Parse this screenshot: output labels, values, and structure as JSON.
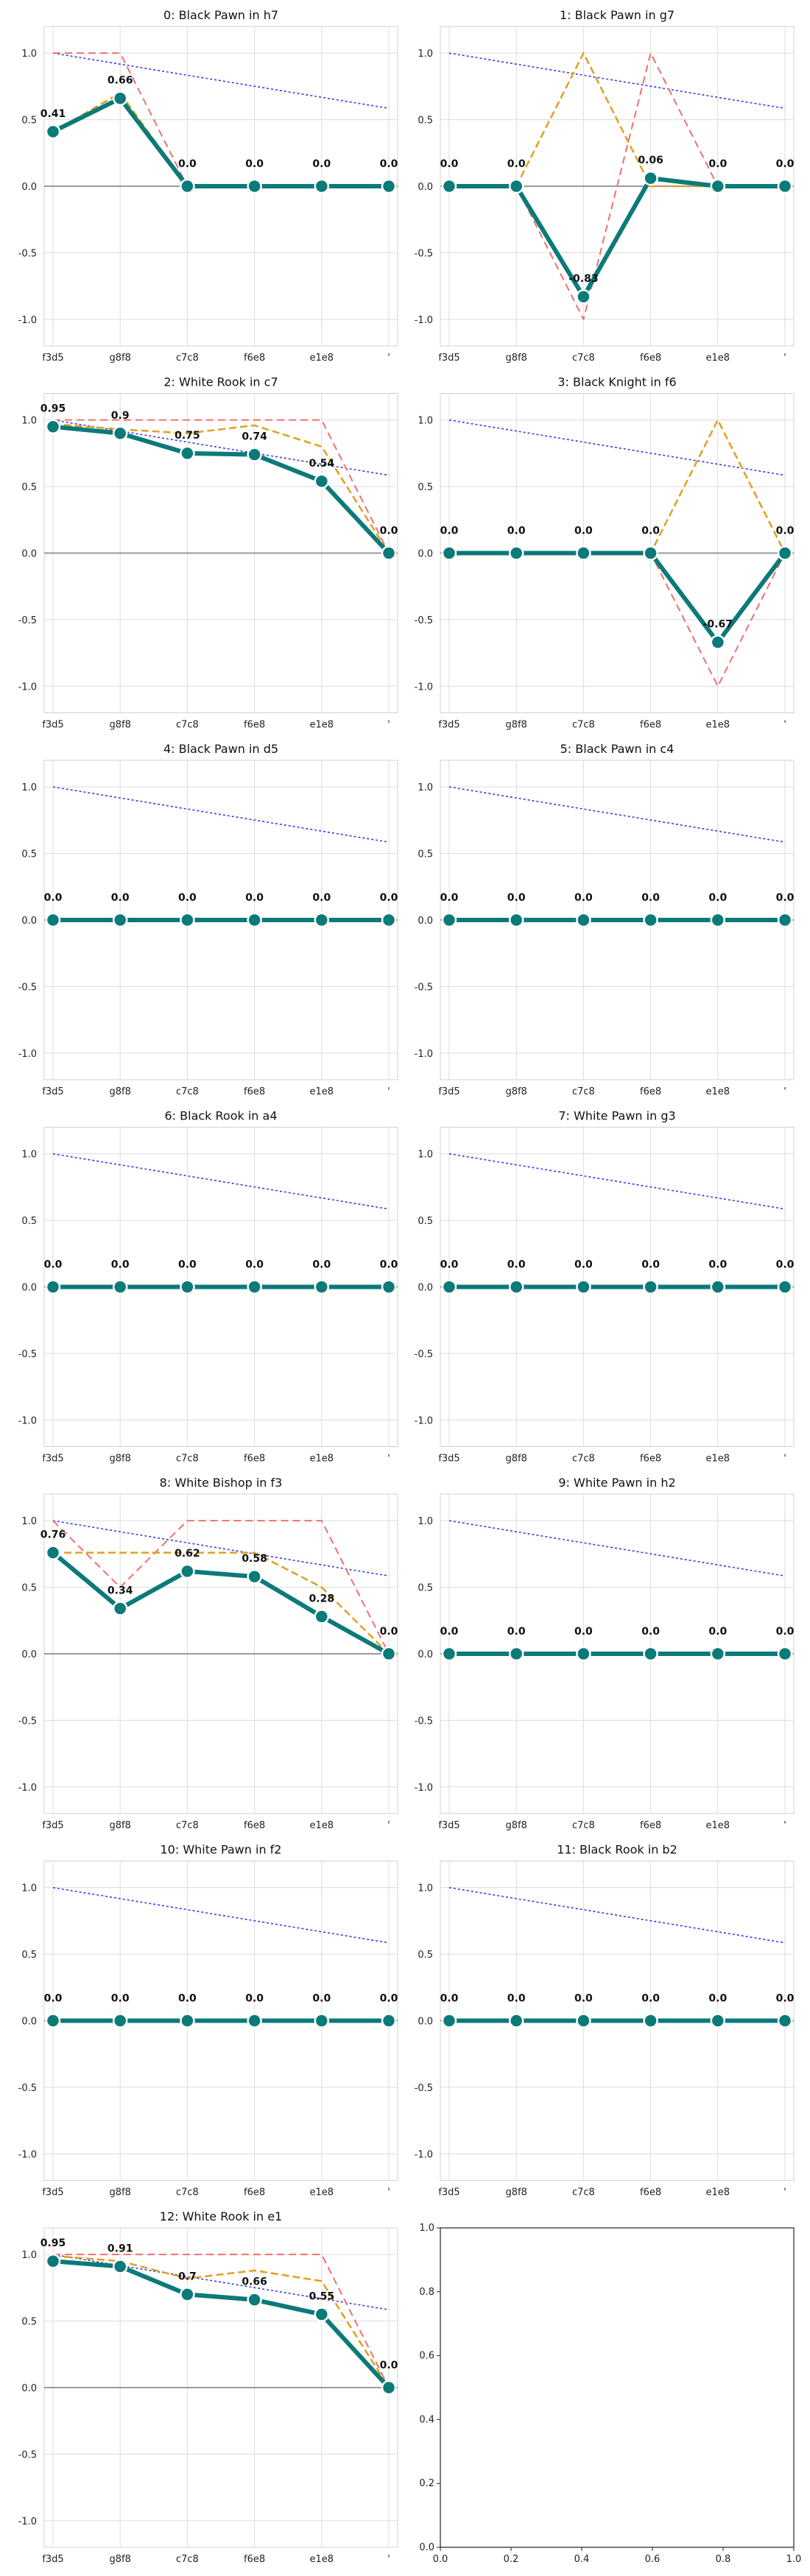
{
  "x_ticks": [
    "f3d5",
    "g8f8",
    "c7c8",
    "f6e8",
    "e1e8",
    "'"
  ],
  "y_ticks": [
    "1.0",
    "0.5",
    "0.0",
    "-0.5",
    "-1.0"
  ],
  "empty_panel_ticks": [
    "0.0",
    "0.2",
    "0.4",
    "0.6",
    "0.8",
    "1.0"
  ],
  "colors": {
    "main": "#0b7a78",
    "orange": "#e0a020",
    "red": "#f07070",
    "blue": "#3a3ae8",
    "zero": "#9a9a9a"
  },
  "chart_data": [
    {
      "type": "line",
      "title": "0: Black Pawn in h7",
      "ylim": [
        -1.2,
        1.2
      ],
      "grid": true,
      "series": [
        {
          "role": "main",
          "values": [
            0.41,
            0.66,
            0.0,
            0.0,
            0.0,
            0.0
          ]
        },
        {
          "role": "orange",
          "values": [
            0.41,
            0.7,
            0.0,
            0.0,
            0.0,
            0.0
          ]
        },
        {
          "role": "red",
          "values": [
            1.0,
            1.0,
            0.0,
            0.0,
            0.0,
            0.0
          ]
        },
        {
          "role": "blue",
          "values": [
            1.0,
            0.917,
            0.834,
            0.751,
            0.668,
            0.585
          ]
        }
      ],
      "labels": [
        "0.41",
        "0.66",
        "0.0",
        "0.0",
        "0.0",
        "0.0"
      ]
    },
    {
      "type": "line",
      "title": "1: Black Pawn in g7",
      "ylim": [
        -1.2,
        1.2
      ],
      "grid": true,
      "series": [
        {
          "role": "main",
          "values": [
            0.0,
            0.0,
            -0.83,
            0.06,
            0.0,
            0.0
          ]
        },
        {
          "role": "orange",
          "values": [
            0.0,
            0.0,
            1.0,
            0.0,
            0.0,
            0.0
          ]
        },
        {
          "role": "red",
          "values": [
            0.0,
            0.0,
            -1.0,
            1.0,
            0.0,
            0.0
          ]
        },
        {
          "role": "blue",
          "values": [
            1.0,
            0.917,
            0.834,
            0.751,
            0.668,
            0.585
          ]
        }
      ],
      "labels": [
        "0.0",
        "0.0",
        "-0.83",
        "0.06",
        "0.0",
        "0.0"
      ]
    },
    {
      "type": "line",
      "title": "2: White Rook in c7",
      "ylim": [
        -1.2,
        1.2
      ],
      "grid": true,
      "series": [
        {
          "role": "main",
          "values": [
            0.95,
            0.9,
            0.75,
            0.74,
            0.54,
            0.0
          ]
        },
        {
          "role": "orange",
          "values": [
            0.97,
            0.93,
            0.9,
            0.96,
            0.8,
            0.0
          ]
        },
        {
          "role": "red",
          "values": [
            1.0,
            1.0,
            1.0,
            1.0,
            1.0,
            0.0
          ]
        },
        {
          "role": "blue",
          "values": [
            1.0,
            0.917,
            0.834,
            0.751,
            0.668,
            0.585
          ]
        }
      ],
      "labels": [
        "0.95",
        "0.9",
        "0.75",
        "0.74",
        "0.54",
        "0.0"
      ]
    },
    {
      "type": "line",
      "title": "3: Black Knight in f6",
      "ylim": [
        -1.2,
        1.2
      ],
      "grid": true,
      "series": [
        {
          "role": "main",
          "values": [
            0.0,
            0.0,
            0.0,
            0.0,
            -0.67,
            0.0
          ]
        },
        {
          "role": "orange",
          "values": [
            0.0,
            0.0,
            0.0,
            0.0,
            1.0,
            0.0
          ]
        },
        {
          "role": "red",
          "values": [
            0.0,
            0.0,
            0.0,
            0.0,
            -1.0,
            0.0
          ]
        },
        {
          "role": "blue",
          "values": [
            1.0,
            0.917,
            0.834,
            0.751,
            0.668,
            0.585
          ]
        }
      ],
      "labels": [
        "0.0",
        "0.0",
        "0.0",
        "0.0",
        "-0.67",
        "0.0"
      ]
    },
    {
      "type": "line",
      "title": "4: Black Pawn in d5",
      "ylim": [
        -1.2,
        1.2
      ],
      "grid": true,
      "series": [
        {
          "role": "main",
          "values": [
            0.0,
            0.0,
            0.0,
            0.0,
            0.0,
            0.0
          ]
        },
        {
          "role": "orange",
          "values": [
            0.0,
            0.0,
            0.0,
            0.0,
            0.0,
            0.0
          ]
        },
        {
          "role": "red",
          "values": [
            0.0,
            0.0,
            0.0,
            0.0,
            0.0,
            0.0
          ]
        },
        {
          "role": "blue",
          "values": [
            1.0,
            0.917,
            0.834,
            0.751,
            0.668,
            0.585
          ]
        }
      ],
      "labels": [
        "0.0",
        "0.0",
        "0.0",
        "0.0",
        "0.0",
        "0.0"
      ]
    },
    {
      "type": "line",
      "title": "5: Black Pawn in c4",
      "ylim": [
        -1.2,
        1.2
      ],
      "grid": true,
      "series": [
        {
          "role": "main",
          "values": [
            0.0,
            0.0,
            0.0,
            0.0,
            0.0,
            0.0
          ]
        },
        {
          "role": "orange",
          "values": [
            0.0,
            0.0,
            0.0,
            0.0,
            0.0,
            0.0
          ]
        },
        {
          "role": "red",
          "values": [
            0.0,
            0.0,
            0.0,
            0.0,
            0.0,
            0.0
          ]
        },
        {
          "role": "blue",
          "values": [
            1.0,
            0.917,
            0.834,
            0.751,
            0.668,
            0.585
          ]
        }
      ],
      "labels": [
        "0.0",
        "0.0",
        "0.0",
        "0.0",
        "0.0",
        "0.0"
      ]
    },
    {
      "type": "line",
      "title": "6: Black Rook in a4",
      "ylim": [
        -1.2,
        1.2
      ],
      "grid": true,
      "series": [
        {
          "role": "main",
          "values": [
            0.0,
            0.0,
            0.0,
            0.0,
            0.0,
            0.0
          ]
        },
        {
          "role": "orange",
          "values": [
            0.0,
            0.0,
            0.0,
            0.0,
            0.0,
            0.0
          ]
        },
        {
          "role": "red",
          "values": [
            0.0,
            0.0,
            0.0,
            0.0,
            0.0,
            0.0
          ]
        },
        {
          "role": "blue",
          "values": [
            1.0,
            0.917,
            0.834,
            0.751,
            0.668,
            0.585
          ]
        }
      ],
      "labels": [
        "0.0",
        "0.0",
        "0.0",
        "0.0",
        "0.0",
        "0.0"
      ]
    },
    {
      "type": "line",
      "title": "7: White Pawn in g3",
      "ylim": [
        -1.2,
        1.2
      ],
      "grid": true,
      "series": [
        {
          "role": "main",
          "values": [
            0.0,
            0.0,
            0.0,
            0.0,
            0.0,
            0.0
          ]
        },
        {
          "role": "orange",
          "values": [
            0.0,
            0.0,
            0.0,
            0.0,
            0.0,
            0.0
          ]
        },
        {
          "role": "red",
          "values": [
            0.0,
            0.0,
            0.0,
            0.0,
            0.0,
            0.0
          ]
        },
        {
          "role": "blue",
          "values": [
            1.0,
            0.917,
            0.834,
            0.751,
            0.668,
            0.585
          ]
        }
      ],
      "labels": [
        "0.0",
        "0.0",
        "0.0",
        "0.0",
        "0.0",
        "0.0"
      ]
    },
    {
      "type": "line",
      "title": "8: White Bishop in f3",
      "ylim": [
        -1.2,
        1.2
      ],
      "grid": true,
      "series": [
        {
          "role": "main",
          "values": [
            0.76,
            0.34,
            0.62,
            0.58,
            0.28,
            0.0
          ]
        },
        {
          "role": "orange",
          "values": [
            0.76,
            0.76,
            0.76,
            0.76,
            0.5,
            0.0
          ]
        },
        {
          "role": "red",
          "values": [
            1.0,
            0.5,
            1.0,
            1.0,
            1.0,
            0.0
          ]
        },
        {
          "role": "blue",
          "values": [
            1.0,
            0.917,
            0.834,
            0.751,
            0.668,
            0.585
          ]
        }
      ],
      "labels": [
        "0.76",
        "0.34",
        "0.62",
        "0.58",
        "0.28",
        "0.0"
      ]
    },
    {
      "type": "line",
      "title": "9: White Pawn in h2",
      "ylim": [
        -1.2,
        1.2
      ],
      "grid": true,
      "series": [
        {
          "role": "main",
          "values": [
            0.0,
            0.0,
            0.0,
            0.0,
            0.0,
            0.0
          ]
        },
        {
          "role": "orange",
          "values": [
            0.0,
            0.0,
            0.0,
            0.0,
            0.0,
            0.0
          ]
        },
        {
          "role": "red",
          "values": [
            0.0,
            0.0,
            0.0,
            0.0,
            0.0,
            0.0
          ]
        },
        {
          "role": "blue",
          "values": [
            1.0,
            0.917,
            0.834,
            0.751,
            0.668,
            0.585
          ]
        }
      ],
      "labels": [
        "0.0",
        "0.0",
        "0.0",
        "0.0",
        "0.0",
        "0.0"
      ]
    },
    {
      "type": "line",
      "title": "10: White Pawn in f2",
      "ylim": [
        -1.2,
        1.2
      ],
      "grid": true,
      "series": [
        {
          "role": "main",
          "values": [
            0.0,
            0.0,
            0.0,
            0.0,
            0.0,
            0.0
          ]
        },
        {
          "role": "orange",
          "values": [
            0.0,
            0.0,
            0.0,
            0.0,
            0.0,
            0.0
          ]
        },
        {
          "role": "red",
          "values": [
            0.0,
            0.0,
            0.0,
            0.0,
            0.0,
            0.0
          ]
        },
        {
          "role": "blue",
          "values": [
            1.0,
            0.917,
            0.834,
            0.751,
            0.668,
            0.585
          ]
        }
      ],
      "labels": [
        "0.0",
        "0.0",
        "0.0",
        "0.0",
        "0.0",
        "0.0"
      ]
    },
    {
      "type": "line",
      "title": "11: Black Rook in b2",
      "ylim": [
        -1.2,
        1.2
      ],
      "grid": true,
      "series": [
        {
          "role": "main",
          "values": [
            0.0,
            0.0,
            0.0,
            0.0,
            0.0,
            0.0
          ]
        },
        {
          "role": "orange",
          "values": [
            0.0,
            0.0,
            0.0,
            0.0,
            0.0,
            0.0
          ]
        },
        {
          "role": "red",
          "values": [
            0.0,
            0.0,
            0.0,
            0.0,
            0.0,
            0.0
          ]
        },
        {
          "role": "blue",
          "values": [
            1.0,
            0.917,
            0.834,
            0.751,
            0.668,
            0.585
          ]
        }
      ],
      "labels": [
        "0.0",
        "0.0",
        "0.0",
        "0.0",
        "0.0",
        "0.0"
      ]
    },
    {
      "type": "line",
      "title": "12: White Rook in e1",
      "ylim": [
        -1.2,
        1.2
      ],
      "grid": true,
      "series": [
        {
          "role": "main",
          "values": [
            0.95,
            0.91,
            0.7,
            0.66,
            0.55,
            0.0
          ]
        },
        {
          "role": "orange",
          "values": [
            0.99,
            0.95,
            0.82,
            0.88,
            0.8,
            0.0
          ]
        },
        {
          "role": "red",
          "values": [
            1.0,
            1.0,
            1.0,
            1.0,
            1.0,
            0.0
          ]
        },
        {
          "role": "blue",
          "values": [
            1.0,
            0.917,
            0.834,
            0.751,
            0.668,
            0.585
          ]
        }
      ],
      "labels": [
        "0.95",
        "0.91",
        "0.7",
        "0.66",
        "0.55",
        "0.0"
      ]
    },
    {
      "type": "line",
      "title": "",
      "xlim": [
        0,
        1
      ],
      "ylim": [
        0,
        1
      ],
      "grid": false,
      "series": []
    }
  ]
}
